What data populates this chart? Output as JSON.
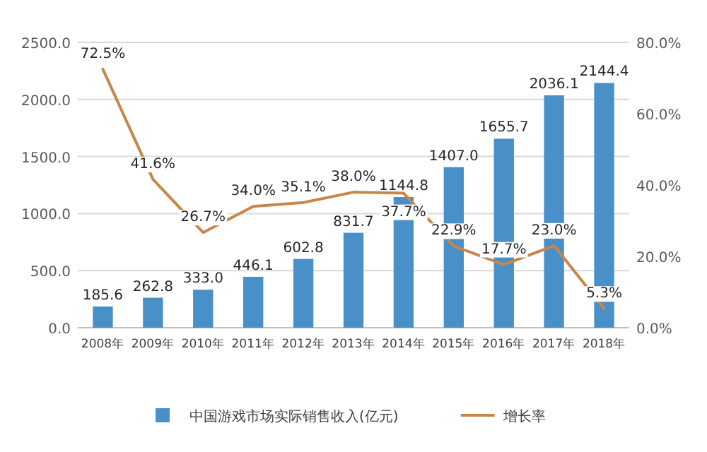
{
  "chart_data": {
    "type": "bar",
    "categories": [
      "2008年",
      "2009年",
      "2010年",
      "2011年",
      "2012年",
      "2013年",
      "2014年",
      "2015年",
      "2016年",
      "2017年",
      "2018年"
    ],
    "series": [
      {
        "name": "中国游戏市场实际销售收入(亿元)",
        "color": "#4a90c8",
        "values": [
          185.6,
          262.8,
          333.0,
          446.1,
          602.8,
          831.7,
          1144.8,
          1407.0,
          1655.7,
          2036.1,
          2144.4
        ],
        "value_labels": [
          "185.6",
          "262.8",
          "333.0",
          "446.1",
          "602.8",
          "831.7",
          "1144.8",
          "1407.0",
          "1655.7",
          "2036.1",
          "2144.4"
        ]
      },
      {
        "name": "增长率",
        "type": "line",
        "axis": "y2",
        "color": "#c8874a",
        "values": [
          72.5,
          41.6,
          26.7,
          34.0,
          35.1,
          38.0,
          37.7,
          22.9,
          17.7,
          23.0,
          5.3
        ],
        "value_labels": [
          "72.5%",
          "41.6%",
          "26.7%",
          "34.0%",
          "35.1%",
          "38.0%",
          "37.7%",
          "22.9%",
          "17.7%",
          "23.0%",
          "5.3%"
        ]
      }
    ],
    "ylim": [
      0,
      2500
    ],
    "yticks": [
      {
        "value": 0,
        "label": "0.0"
      },
      {
        "value": 500,
        "label": "500.0"
      },
      {
        "value": 1000,
        "label": "1000.0"
      },
      {
        "value": 1500,
        "label": "1500.0"
      },
      {
        "value": 2000,
        "label": "2000.0"
      },
      {
        "value": 2500,
        "label": "2500.0"
      }
    ],
    "y2lim": [
      0,
      80
    ],
    "y2ticks": [
      {
        "value": 0,
        "label": "0.0%"
      },
      {
        "value": 20,
        "label": "20.0%"
      },
      {
        "value": 40,
        "label": "40.0%"
      },
      {
        "value": 60,
        "label": "60.0%"
      },
      {
        "value": 80,
        "label": "80.0%"
      }
    ],
    "grid": "y",
    "legend": "bottom",
    "marker": "none",
    "line_style": "solid"
  }
}
